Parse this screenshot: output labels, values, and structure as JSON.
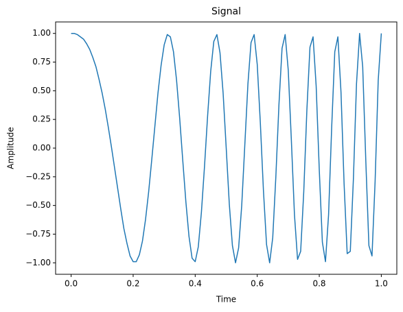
{
  "chart_data": {
    "type": "line",
    "title": "Signal",
    "x_label": "Time",
    "y_label": "Amplitude",
    "x": [
      0,
      0.01,
      0.02,
      0.03,
      0.04,
      0.05,
      0.06,
      0.07,
      0.08,
      0.09,
      0.1,
      0.11,
      0.12,
      0.13,
      0.14,
      0.15,
      0.16,
      0.17,
      0.18,
      0.19,
      0.2,
      0.21,
      0.22,
      0.23,
      0.24,
      0.25,
      0.26,
      0.27,
      0.28,
      0.29,
      0.3,
      0.31,
      0.32,
      0.33,
      0.34,
      0.35,
      0.36,
      0.37,
      0.38,
      0.39,
      0.4,
      0.41,
      0.42,
      0.43,
      0.44,
      0.45,
      0.46,
      0.47,
      0.48,
      0.49,
      0.5,
      0.51,
      0.52,
      0.53,
      0.54,
      0.55,
      0.56,
      0.57,
      0.58,
      0.59,
      0.6,
      0.61,
      0.62,
      0.63,
      0.64,
      0.65,
      0.66,
      0.67,
      0.68,
      0.69,
      0.7,
      0.71,
      0.72,
      0.73,
      0.74,
      0.75,
      0.76,
      0.77,
      0.78,
      0.79,
      0.8,
      0.81,
      0.82,
      0.83,
      0.84,
      0.85,
      0.86,
      0.87,
      0.88,
      0.89,
      0.9,
      0.91,
      0.92,
      0.93,
      0.94,
      0.95,
      0.96,
      0.97,
      0.98,
      0.99,
      1
    ],
    "series": [
      {
        "name": "Signal",
        "color": "#1f77b4",
        "values": [
          1,
          1,
          0.99,
          0.97,
          0.95,
          0.91,
          0.86,
          0.79,
          0.71,
          0.6,
          0.48,
          0.34,
          0.18,
          0.01,
          -0.17,
          -0.35,
          -0.53,
          -0.7,
          -0.83,
          -0.94,
          -0.99,
          -0.99,
          -0.93,
          -0.81,
          -0.62,
          -0.38,
          -0.1,
          0.19,
          0.48,
          0.72,
          0.9,
          0.99,
          0.97,
          0.84,
          0.59,
          0.26,
          -0.11,
          -0.47,
          -0.77,
          -0.96,
          -0.99,
          -0.86,
          -0.56,
          -0.16,
          0.28,
          0.67,
          0.93,
          0.99,
          0.83,
          0.48,
          0,
          -0.49,
          -0.85,
          -1,
          -0.87,
          -0.5,
          0.03,
          0.56,
          0.92,
          0.99,
          0.73,
          0.22,
          -0.37,
          -0.84,
          -1,
          -0.78,
          -0.25,
          0.38,
          0.87,
          0.99,
          0.68,
          0.07,
          -0.58,
          -0.97,
          -0.9,
          -0.38,
          0.33,
          0.88,
          0.97,
          0.54,
          -0.19,
          -0.82,
          -0.99,
          -0.58,
          0.18,
          0.84,
          0.97,
          0.49,
          -0.31,
          -0.92,
          -0.9,
          -0.27,
          0.56,
          1,
          0.71,
          -0.11,
          -0.85,
          -0.94,
          -0.29,
          0.59,
          1
        ]
      }
    ],
    "xlim": [
      -0.05,
      1.05
    ],
    "ylim": [
      -1.1,
      1.1
    ],
    "xticks": [
      {
        "value": 0,
        "label": "0.0"
      },
      {
        "value": 0.2,
        "label": "0.2"
      },
      {
        "value": 0.4,
        "label": "0.4"
      },
      {
        "value": 0.6,
        "label": "0.6"
      },
      {
        "value": 0.8,
        "label": "0.8"
      },
      {
        "value": 1,
        "label": "1.0"
      }
    ],
    "yticks": [
      {
        "value": -1,
        "label": "−1.00"
      },
      {
        "value": -0.75,
        "label": "−0.75"
      },
      {
        "value": -0.5,
        "label": "−0.50"
      },
      {
        "value": -0.25,
        "label": "−0.25"
      },
      {
        "value": 0,
        "label": "0.00"
      },
      {
        "value": 0.25,
        "label": "0.25"
      },
      {
        "value": 0.5,
        "label": "0.50"
      },
      {
        "value": 0.75,
        "label": "0.75"
      },
      {
        "value": 1,
        "label": "1.00"
      }
    ]
  }
}
